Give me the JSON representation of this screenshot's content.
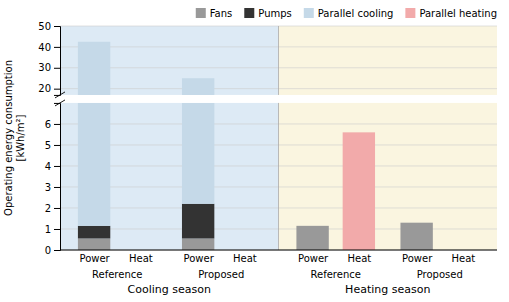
{
  "chart_data": {
    "type": "bar",
    "stacked": true,
    "categories": [
      "Power",
      "Heat",
      "Power",
      "Heat",
      "Power",
      "Heat",
      "Power",
      "Heat"
    ],
    "group_labels": [
      "Reference",
      "Proposed",
      "Reference",
      "Proposed"
    ],
    "season_labels": [
      "Cooling season",
      "Heating season"
    ],
    "season_colors": [
      "#ddeaf5",
      "#faf5e0"
    ],
    "series": [
      {
        "name": "Fans",
        "color": "#999999",
        "values": [
          0.55,
          0,
          0.55,
          0,
          1.15,
          0,
          1.3,
          0
        ]
      },
      {
        "name": "Pumps",
        "color": "#333333",
        "values": [
          0.6,
          0,
          1.65,
          0,
          0,
          0,
          0,
          0
        ]
      },
      {
        "name": "Parallel cooling",
        "color": "#c5d9e8",
        "values": [
          41.3,
          0,
          22.8,
          0,
          0,
          0,
          0,
          0
        ]
      },
      {
        "name": "Parallel heating",
        "color": "#f2aaaa",
        "values": [
          0,
          0,
          0,
          0,
          0,
          5.6,
          0,
          0
        ]
      }
    ],
    "ylabel": "Operating energy consumption\n[kWh/m²]",
    "ylim": [
      [
        0,
        7
      ],
      [
        17,
        50
      ]
    ],
    "yticks": [
      [
        0,
        1,
        2,
        3,
        4,
        5,
        6
      ],
      [
        20,
        30,
        40,
        50
      ]
    ],
    "grid": true,
    "legend": "upper right"
  }
}
